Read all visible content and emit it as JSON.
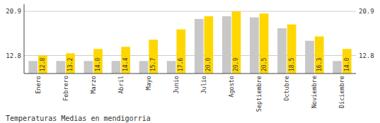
{
  "chart_data": {
    "type": "bar",
    "title": "Temperaturas Medias en mendigorria",
    "categories": [
      "Enero",
      "Febrero",
      "Marzo",
      "Abril",
      "Mayo",
      "Junio",
      "Julio",
      "Agosto",
      "Septiembre",
      "Octubre",
      "Noviembre",
      "Diciembre"
    ],
    "series": [
      {
        "color": "#C8C8C8",
        "values": [
          11.8,
          11.8,
          11.8,
          11.8,
          11.8,
          11.8,
          19.5,
          20.0,
          19.8,
          17.8,
          15.5,
          11.8
        ]
      },
      {
        "color": "#FFD700",
        "values": [
          12.8,
          13.2,
          14.0,
          14.4,
          15.7,
          17.6,
          20.0,
          20.9,
          20.5,
          18.5,
          16.3,
          14.0
        ],
        "value_labels": [
          "12.8",
          "13.2",
          "14.0",
          "14.4",
          "15.7",
          "17.6",
          "20.0",
          "20.9",
          "20.5",
          "18.5",
          "16.3",
          "14.0"
        ],
        "data_labels": true
      }
    ],
    "ylim": [
      9.5,
      22.2
    ],
    "yticks": [
      12.8,
      20.9
    ],
    "grid": true
  }
}
